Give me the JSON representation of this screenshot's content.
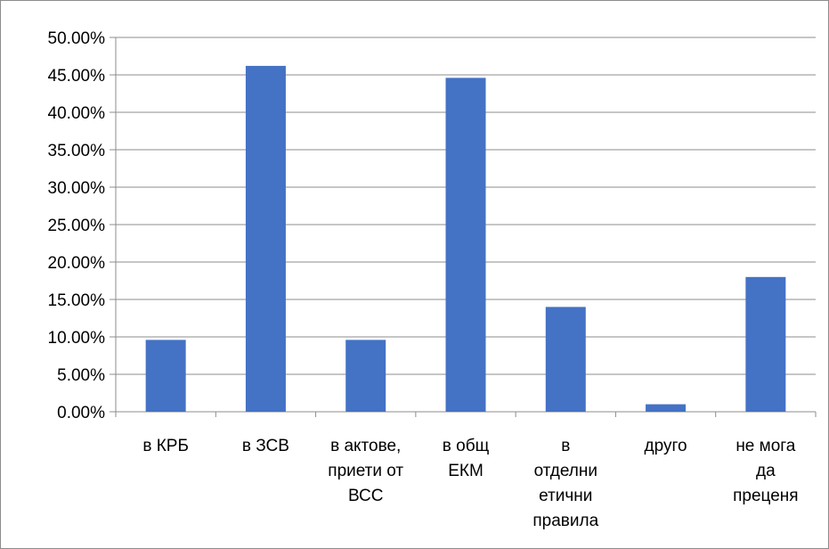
{
  "chart_data": {
    "type": "bar",
    "categories": [
      [
        "в КРБ"
      ],
      [
        "в ЗСВ"
      ],
      [
        "в актове,",
        "приети от",
        "ВСС"
      ],
      [
        "в общ",
        "ЕКМ"
      ],
      [
        "в",
        "отделни",
        "етични",
        "правила"
      ],
      [
        "друго"
      ],
      [
        "не мога",
        "да",
        "преценя"
      ]
    ],
    "values": [
      9.6,
      46.2,
      9.6,
      44.6,
      14.0,
      1.0,
      18.0
    ],
    "ylim": [
      0,
      50
    ],
    "yticks": [
      "0.00%",
      "5.00%",
      "10.00%",
      "15.00%",
      "20.00%",
      "25.00%",
      "30.00%",
      "35.00%",
      "40.00%",
      "45.00%",
      "50.00%"
    ],
    "title": "",
    "xlabel": "",
    "ylabel": "",
    "grid": true,
    "legend": "none",
    "bar_color": "#4472C4",
    "grid_color": "#8c8c8c"
  }
}
